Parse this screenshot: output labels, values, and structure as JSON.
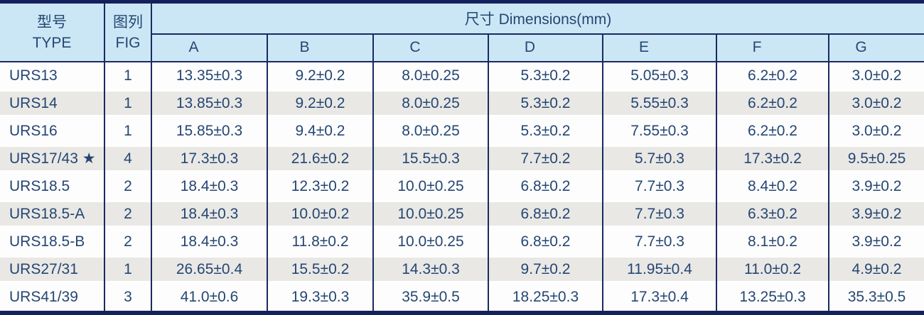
{
  "colors": {
    "header_bg": "#cbe7f6",
    "stripe_bg": "#e9e8e5",
    "border_navy": "#1a2a62",
    "border_strong": "#14215c",
    "text_navy": "#254672"
  },
  "table": {
    "header": {
      "type_cn": "型号",
      "type_en": "TYPE",
      "fig_cn": "图列",
      "fig_en": "FIG",
      "dims_title": "尺寸 Dimensions(mm)",
      "dim_columns": [
        "A",
        "B",
        "C",
        "D",
        "E",
        "F",
        "G"
      ]
    },
    "rows": [
      {
        "type": "URS13",
        "fig": "1",
        "dims": [
          "13.35±0.3",
          "9.2±0.2",
          "8.0±0.25",
          "5.3±0.2",
          "5.05±0.3",
          "6.2±0.2",
          "3.0±0.2"
        ]
      },
      {
        "type": "URS14",
        "fig": "1",
        "dims": [
          "13.85±0.3",
          "9.2±0.2",
          "8.0±0.25",
          "5.3±0.2",
          "5.55±0.3",
          "6.2±0.2",
          "3.0±0.2"
        ]
      },
      {
        "type": "URS16",
        "fig": "1",
        "dims": [
          "15.85±0.3",
          "9.4±0.2",
          "8.0±0.25",
          "5.3±0.2",
          "7.55±0.3",
          "6.2±0.2",
          "3.0±0.2"
        ]
      },
      {
        "type": "URS17/43 ★",
        "fig": "4",
        "dims": [
          "17.3±0.3",
          "21.6±0.2",
          "15.5±0.3",
          "7.7±0.2",
          "5.7±0.3",
          "17.3±0.2",
          "9.5±0.25"
        ]
      },
      {
        "type": "URS18.5",
        "fig": "2",
        "dims": [
          "18.4±0.3",
          "12.3±0.2",
          "10.0±0.25",
          "6.8±0.2",
          "7.7±0.3",
          "8.4±0.2",
          "3.9±0.2"
        ]
      },
      {
        "type": "URS18.5-A",
        "fig": "2",
        "dims": [
          "18.4±0.3",
          "10.0±0.2",
          "10.0±0.25",
          "6.8±0.2",
          "7.7±0.3",
          "6.3±0.2",
          "3.9±0.2"
        ]
      },
      {
        "type": "URS18.5-B",
        "fig": "2",
        "dims": [
          "18.4±0.3",
          "11.8±0.2",
          "10.0±0.25",
          "6.8±0.2",
          "7.7±0.3",
          "8.1±0.2",
          "3.9±0.2"
        ]
      },
      {
        "type": "URS27/31",
        "fig": "1",
        "dims": [
          "26.65±0.4",
          "15.5±0.2",
          "14.3±0.3",
          "9.7±0.2",
          "11.95±0.4",
          "11.0±0.2",
          "4.9±0.2"
        ]
      },
      {
        "type": "URS41/39",
        "fig": "3",
        "dims": [
          "41.0±0.6",
          "19.3±0.3",
          "35.9±0.5",
          "18.25±0.3",
          "17.3±0.4",
          "13.25±0.3",
          "35.3±0.5"
        ]
      }
    ]
  }
}
